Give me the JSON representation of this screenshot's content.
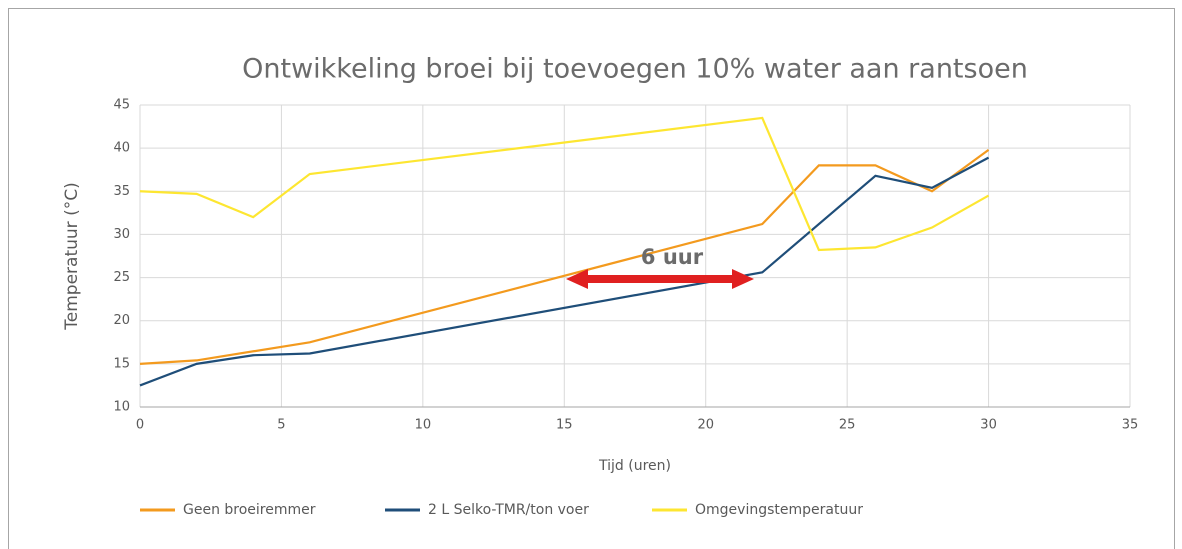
{
  "chart_data": {
    "type": "line",
    "title": "Ontwikkeling broei bij toevoegen 10% water aan rantsoen",
    "xlabel": "Tijd (uren)",
    "ylabel": "Temperatuur (°C)",
    "annotation": "6 uur",
    "xlim": [
      0,
      35
    ],
    "xticks": [
      0,
      5,
      10,
      15,
      20,
      25,
      30,
      35
    ],
    "ylim": [
      10,
      45
    ],
    "yticks": [
      10,
      15,
      20,
      25,
      30,
      35,
      40,
      45
    ],
    "grid": true,
    "legend": "bottom",
    "series": [
      {
        "name": "Geen broeiremmer",
        "color": "#f39a1e",
        "x": [
          0,
          2,
          6,
          22,
          24,
          26,
          28,
          30
        ],
        "values": [
          15,
          15.4,
          17.5,
          31.2,
          38,
          38,
          35,
          39.8
        ]
      },
      {
        "name": "2 L Selko-TMR/ton voer",
        "color": "#1f4e79",
        "x": [
          0,
          2,
          4,
          6,
          22,
          26,
          28,
          30
        ],
        "values": [
          12.5,
          15,
          16,
          16.2,
          25.6,
          36.8,
          35.4,
          38.9
        ]
      },
      {
        "name": "Omgevingstemperatuur",
        "color": "#fde631",
        "x": [
          0,
          2,
          4,
          6,
          22,
          24,
          26,
          28,
          30
        ],
        "values": [
          35,
          34.7,
          32,
          37,
          43.5,
          28.2,
          28.5,
          30.8,
          34.5
        ]
      }
    ]
  }
}
